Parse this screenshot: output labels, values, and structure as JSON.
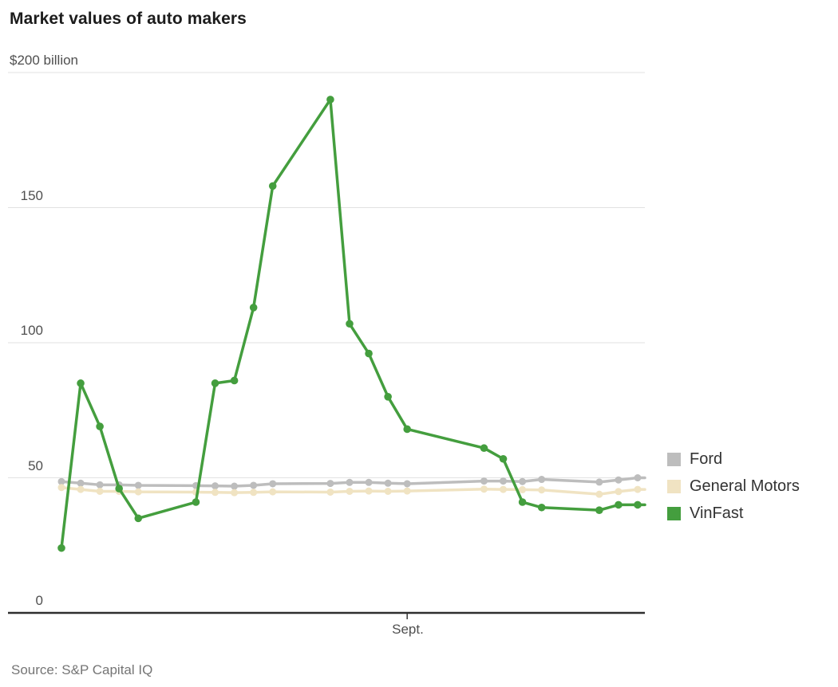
{
  "chart_data": {
    "type": "line",
    "title": "Market values of auto makers",
    "source": "Source: S&P Capital IQ",
    "ylim": [
      0,
      200
    ],
    "y_unit": "billion USD",
    "y_ticks": [
      {
        "value": 200,
        "label": "$200 billion"
      },
      {
        "value": 150,
        "label": "150"
      },
      {
        "value": 100,
        "label": "100"
      },
      {
        "value": 50,
        "label": "50"
      },
      {
        "value": 0,
        "label": "0"
      }
    ],
    "x_axis": {
      "tick_label": "Sept.",
      "tick_offset": 18,
      "max_offset": 30,
      "note_offsets_are_days": true
    },
    "day_offsets": [
      0,
      1,
      2,
      3,
      4,
      7,
      8,
      9,
      10,
      11,
      14,
      15,
      16,
      17,
      18,
      22,
      23,
      24,
      25,
      28,
      29,
      30
    ],
    "grid": true,
    "legend_position": "right",
    "series": [
      {
        "name": "Ford",
        "color": "#bdbdbd",
        "values": [
          48.6,
          48.0,
          47.4,
          47.4,
          47.2,
          47.1,
          47.0,
          46.9,
          47.2,
          47.8,
          47.9,
          48.3,
          48.3,
          48.0,
          47.8,
          48.8,
          48.8,
          48.6,
          49.4,
          48.4,
          49.2,
          50.0
        ]
      },
      {
        "name": "General Motors",
        "color": "#f0e3c2",
        "values": [
          46.4,
          45.7,
          45.0,
          45.0,
          44.8,
          44.7,
          44.6,
          44.5,
          44.6,
          44.8,
          44.7,
          45.0,
          45.1,
          45.0,
          45.1,
          45.8,
          45.7,
          45.6,
          45.5,
          43.9,
          44.9,
          45.7
        ]
      },
      {
        "name": "VinFast",
        "color": "#449e3e",
        "values": [
          24,
          85,
          69,
          46,
          35,
          41,
          85,
          86,
          113,
          158,
          190,
          107,
          96,
          80,
          68,
          61,
          57,
          41,
          39,
          38,
          40,
          40
        ]
      }
    ],
    "colors": {
      "gridline": "#e2e2e2",
      "axis": "#2e2e2e",
      "tick": "#444444"
    }
  }
}
